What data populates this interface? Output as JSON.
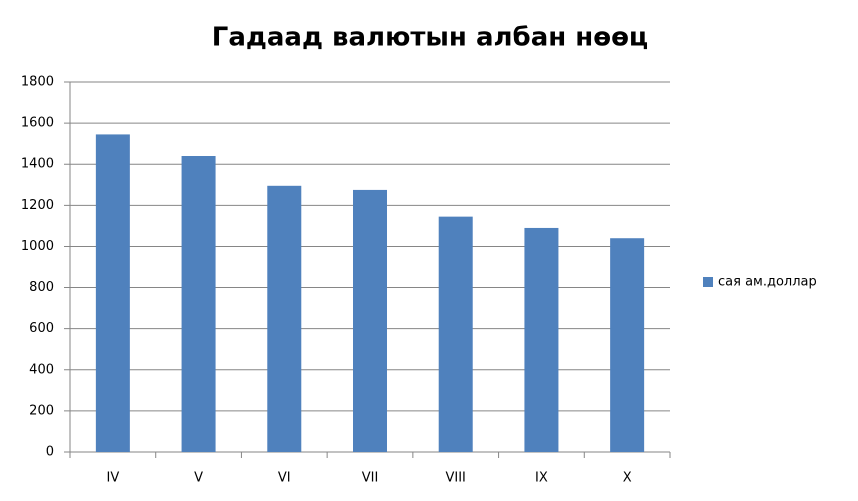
{
  "chart_data": {
    "type": "bar",
    "title": "Гадаад валютын албан нөөц",
    "categories": [
      "IV",
      "V",
      "VI",
      "VII",
      "VIII",
      "IX",
      "X"
    ],
    "series": [
      {
        "name": "сая ам.доллар",
        "color": "#4f81bd",
        "values": [
          1545,
          1440,
          1295,
          1275,
          1145,
          1090,
          1040
        ]
      }
    ],
    "ylim": [
      0,
      1800
    ],
    "yticks": [
      0,
      200,
      400,
      600,
      800,
      1000,
      1200,
      1400,
      1600,
      1800
    ],
    "grid": true,
    "legend": "right"
  }
}
